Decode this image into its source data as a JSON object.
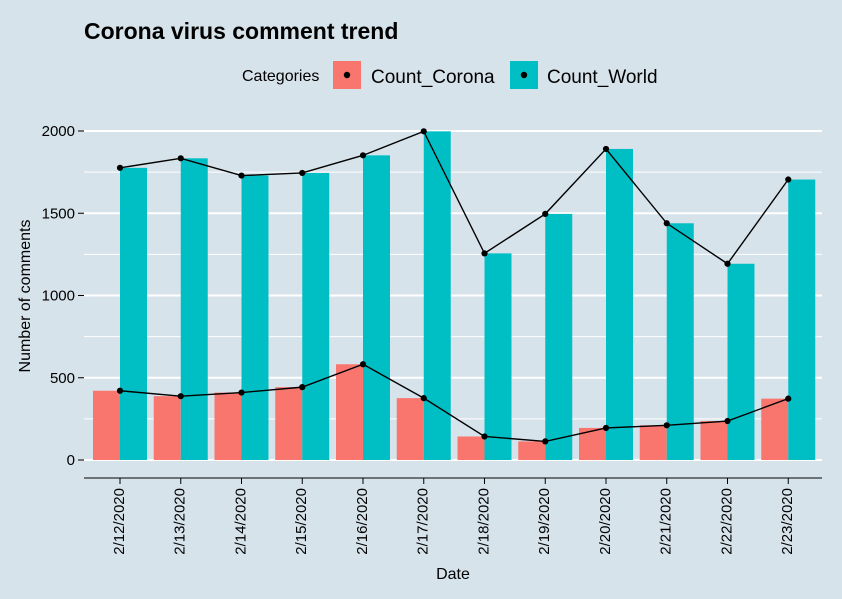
{
  "chart_data": {
    "type": "bar",
    "title": "Corona virus comment trend",
    "xlabel": "Date",
    "ylabel": "Number of comments",
    "legend_title": "Categories",
    "legend_position": "top",
    "ylim": [
      0,
      2000
    ],
    "yticks": [
      0,
      500,
      1000,
      1500,
      2000
    ],
    "grid": true,
    "categories": [
      "2/12/2020",
      "2/13/2020",
      "2/14/2020",
      "2/15/2020",
      "2/16/2020",
      "2/17/2020",
      "2/18/2020",
      "2/19/2020",
      "2/20/2020",
      "2/21/2020",
      "2/22/2020",
      "2/23/2020"
    ],
    "series": [
      {
        "name": "Count_Corona",
        "values": [
          421,
          388,
          410,
          443,
          582,
          376,
          143,
          113,
          195,
          211,
          237,
          373
        ]
      },
      {
        "name": "Count_World",
        "values": [
          1776,
          1834,
          1729,
          1745,
          1852,
          1998,
          1256,
          1496,
          1891,
          1439,
          1193,
          1705
        ]
      }
    ],
    "overlay": "line with points over each series",
    "colors": {
      "Count_Corona": "#f8766d",
      "Count_World": "#00bfc4",
      "line": "#000000",
      "background": "#d7e3eb",
      "grid": "#ffffff"
    }
  }
}
